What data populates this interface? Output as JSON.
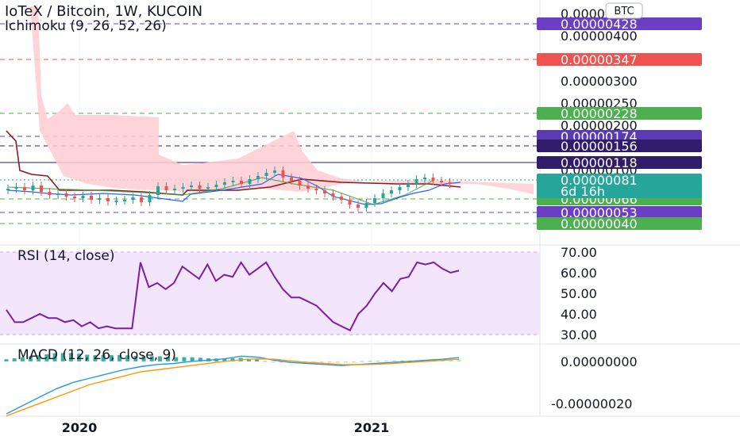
{
  "header": {
    "symbol": "IoTeX / Bitcoin, 1W, KUCOIN",
    "indicator": "Ichimoku (9, 26, 52, 26)",
    "currency_button": "BTC"
  },
  "colors": {
    "rsi": "#7b1fa2",
    "rsi_band": "#f3e5fb",
    "kumo": "#ffcdd2",
    "up": "#26a69a",
    "down": "#ef5350",
    "macd": "#2196f3",
    "signal": "#ff9800",
    "tag_purple": "#6a3fc4",
    "tag_red": "#ef5350",
    "tag_green": "#4caf50",
    "tag_navy": "#2f1d6b",
    "tag_teal": "#26a69a"
  },
  "price_axis": {
    "ticks": [
      "0.00000450",
      "0.00000400",
      "0.00000300",
      "0.00000250",
      "0.00000200",
      "0.00000150",
      "0.00000100",
      "0.00000050"
    ],
    "tags": [
      {
        "label": "0.00000428",
        "color": "#6a3fc4",
        "kind": "purple"
      },
      {
        "label": "0.00000347",
        "color": "#ef5350",
        "kind": "red"
      },
      {
        "label": "0.00000228",
        "color": "#4caf50",
        "kind": "green"
      },
      {
        "label": "0.00000174",
        "color": "#5b3cb0",
        "kind": "purple"
      },
      {
        "label": "0.00000156",
        "color": "#2f1d6b",
        "kind": "navy"
      },
      {
        "label": "0.00000118",
        "color": "#2f1d6b",
        "kind": "navy"
      },
      {
        "label": "0.00000081",
        "color": "#26a69a",
        "kind": "teal"
      },
      {
        "label": "0.00000066",
        "color": "#4caf50",
        "kind": "green"
      },
      {
        "label": "0.00000053",
        "color": "#6a3fc4",
        "kind": "purple"
      },
      {
        "label": "0.00000040",
        "color": "#4caf50",
        "kind": "green"
      }
    ],
    "countdown": "6d 16h"
  },
  "chart_data": [
    {
      "type": "candlestick",
      "title": "IoTeX / Bitcoin, 1W, KUCOIN",
      "indicator": "Ichimoku (9, 26, 52, 26)",
      "last_price": "0.00000081"
    },
    {
      "type": "line",
      "title": "RSI (14, close)",
      "yticks": [
        "70.00",
        "60.00",
        "50.00",
        "40.00",
        "30.00"
      ],
      "ylim": [
        30,
        70
      ],
      "values": [
        42,
        36,
        36,
        38,
        40,
        38,
        38,
        36,
        37,
        34,
        36,
        33,
        34,
        33,
        33,
        33,
        65,
        53,
        55,
        52,
        55,
        63,
        60,
        57,
        64,
        56,
        59,
        58,
        65,
        59,
        62,
        65,
        58,
        52,
        48,
        48,
        46,
        44,
        40,
        36,
        34,
        32,
        40,
        44,
        50,
        55,
        51,
        57,
        58,
        65,
        64,
        65,
        62,
        60,
        61
      ]
    },
    {
      "type": "histogram",
      "title": "MACD (12, 26, close, 9)",
      "yticks": [
        "0.00000000",
        "-0.00000020"
      ],
      "ylim": [
        -2.5e-07,
        6e-08
      ],
      "macd": [
        -2.5e-07,
        -2.1e-07,
        -1.7e-07,
        -1.3e-07,
        -1e-07,
        -8e-08,
        -6e-08,
        -4e-08,
        -2.5e-08,
        -1.5e-08,
        -1e-08,
        0.0,
        5e-09,
        1.2e-08,
        2.5e-08,
        2e-08,
        5e-09,
        -5e-09,
        -1e-08,
        -1.5e-08,
        -2e-08,
        -1.5e-08,
        -1e-08,
        -5e-09,
        0.0,
        5e-09,
        1e-08,
        1.8e-08
      ],
      "signal": [
        -2.6e-07,
        -2.3e-07,
        -2e-07,
        -1.7e-07,
        -1.4e-07,
        -1.1e-07,
        -9e-08,
        -7e-08,
        -5e-08,
        -4e-08,
        -3e-08,
        -2e-08,
        -1e-08,
        0.0,
        8e-09,
        1.2e-08,
        1e-08,
        2e-09,
        -5e-09,
        -1e-08,
        -1.5e-08,
        -1.6e-08,
        -1.4e-08,
        -1e-08,
        -5e-09,
        0.0,
        5e-09,
        1e-08
      ]
    }
  ],
  "time_axis": {
    "labels": [
      "2020",
      "2021"
    ]
  }
}
